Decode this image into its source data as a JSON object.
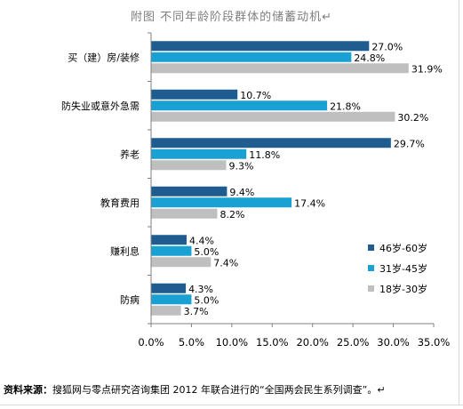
{
  "chart_data": {
    "type": "bar",
    "orientation": "horizontal",
    "title": "附图   不同年龄阶段群体的储蓄动机↵",
    "categories": [
      "买（建）房/装修",
      "防失业或意外急需",
      "养老",
      "教育费用",
      "赚利息",
      "防病"
    ],
    "series": [
      {
        "name": "46岁-60岁",
        "color": "#1f5c8f",
        "values": [
          27.0,
          10.7,
          29.7,
          9.4,
          4.4,
          4.3
        ],
        "labels": [
          "27.0%",
          "10.7%",
          "29.7%",
          "9.4%",
          "4.4%",
          "4.3%"
        ]
      },
      {
        "name": "31岁-45岁",
        "color": "#19a1d4",
        "values": [
          24.8,
          21.8,
          11.8,
          17.4,
          5.0,
          5.0
        ],
        "labels": [
          "24.8%",
          "21.8%",
          "11.8%",
          "17.4%",
          "5.0%",
          "5.0%"
        ]
      },
      {
        "name": "18岁-30岁",
        "color": "#bfbfbf",
        "values": [
          31.9,
          30.2,
          9.3,
          8.2,
          7.4,
          3.7
        ],
        "labels": [
          "31.9%",
          "30.2%",
          "9.3%",
          "8.2%",
          "7.4%",
          "3.7%"
        ]
      }
    ],
    "xlim": [
      0,
      35
    ],
    "xticks": [
      "0.0%",
      "5.0%",
      "10.0%",
      "15.0%",
      "20.0%",
      "25.0%",
      "30.0%",
      "35.0%"
    ],
    "grid": false,
    "legend_position": "right"
  },
  "source": {
    "label": "资料来源：",
    "text": "搜狐网与零点研究咨询集团 2012 年联合进行的“全国两会民生系列调查”。↵"
  }
}
